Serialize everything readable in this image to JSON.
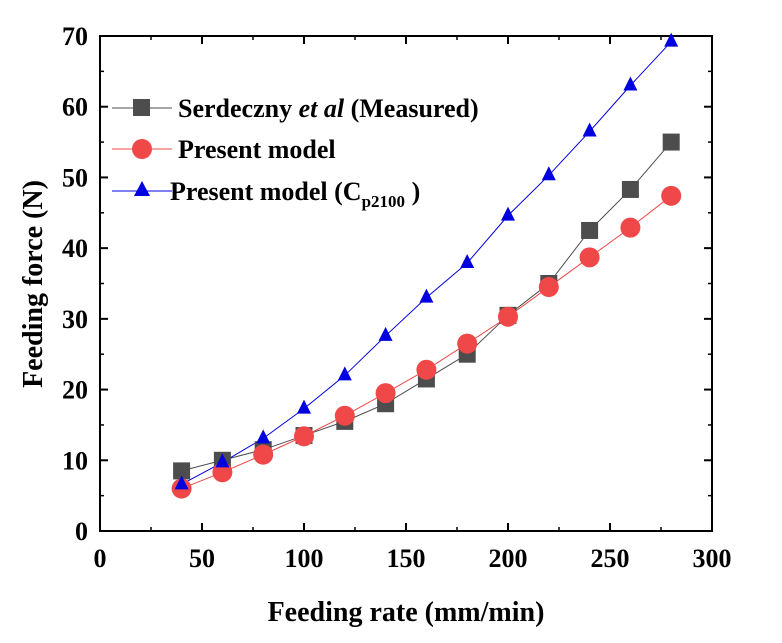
{
  "chart_data": {
    "type": "line",
    "xlabel": "Feeding rate (mm/min)",
    "ylabel": "Feeding force (N)",
    "xlim": [
      0,
      300
    ],
    "ylim": [
      0,
      70
    ],
    "xticks": [
      0,
      50,
      100,
      150,
      200,
      250,
      300
    ],
    "yticks": [
      0,
      10,
      20,
      30,
      40,
      50,
      60,
      70
    ],
    "grid": false,
    "legend_position": "top-left",
    "legend": {
      "measured": {
        "prefix": "Serdeczny ",
        "italic": "et al",
        "suffix": " (Measured)"
      },
      "model": {
        "text": "Present model"
      },
      "cp": {
        "main": "Present model (C",
        "sub": "p2100",
        "close": " )"
      }
    },
    "x": [
      40,
      60,
      80,
      100,
      120,
      140,
      160,
      180,
      200,
      220,
      240,
      260,
      280
    ],
    "series": [
      {
        "key": "measured",
        "values": [
          8.5,
          10.0,
          11.5,
          13.5,
          15.5,
          18.0,
          21.5,
          25.0,
          30.5,
          35.0,
          42.5,
          48.3,
          55.0
        ],
        "color": "#4d4d4d",
        "marker": "square"
      },
      {
        "key": "model",
        "values": [
          6.0,
          8.3,
          10.8,
          13.4,
          16.3,
          19.5,
          22.8,
          26.5,
          30.3,
          34.5,
          38.7,
          42.9,
          47.4
        ],
        "color": "#f04848",
        "marker": "circle"
      },
      {
        "key": "cp",
        "values": [
          6.6,
          9.7,
          13.1,
          17.3,
          22.0,
          27.6,
          33.0,
          37.9,
          44.6,
          50.3,
          56.5,
          63.0,
          69.2
        ],
        "color": "#0000e0",
        "marker": "triangle"
      }
    ]
  }
}
